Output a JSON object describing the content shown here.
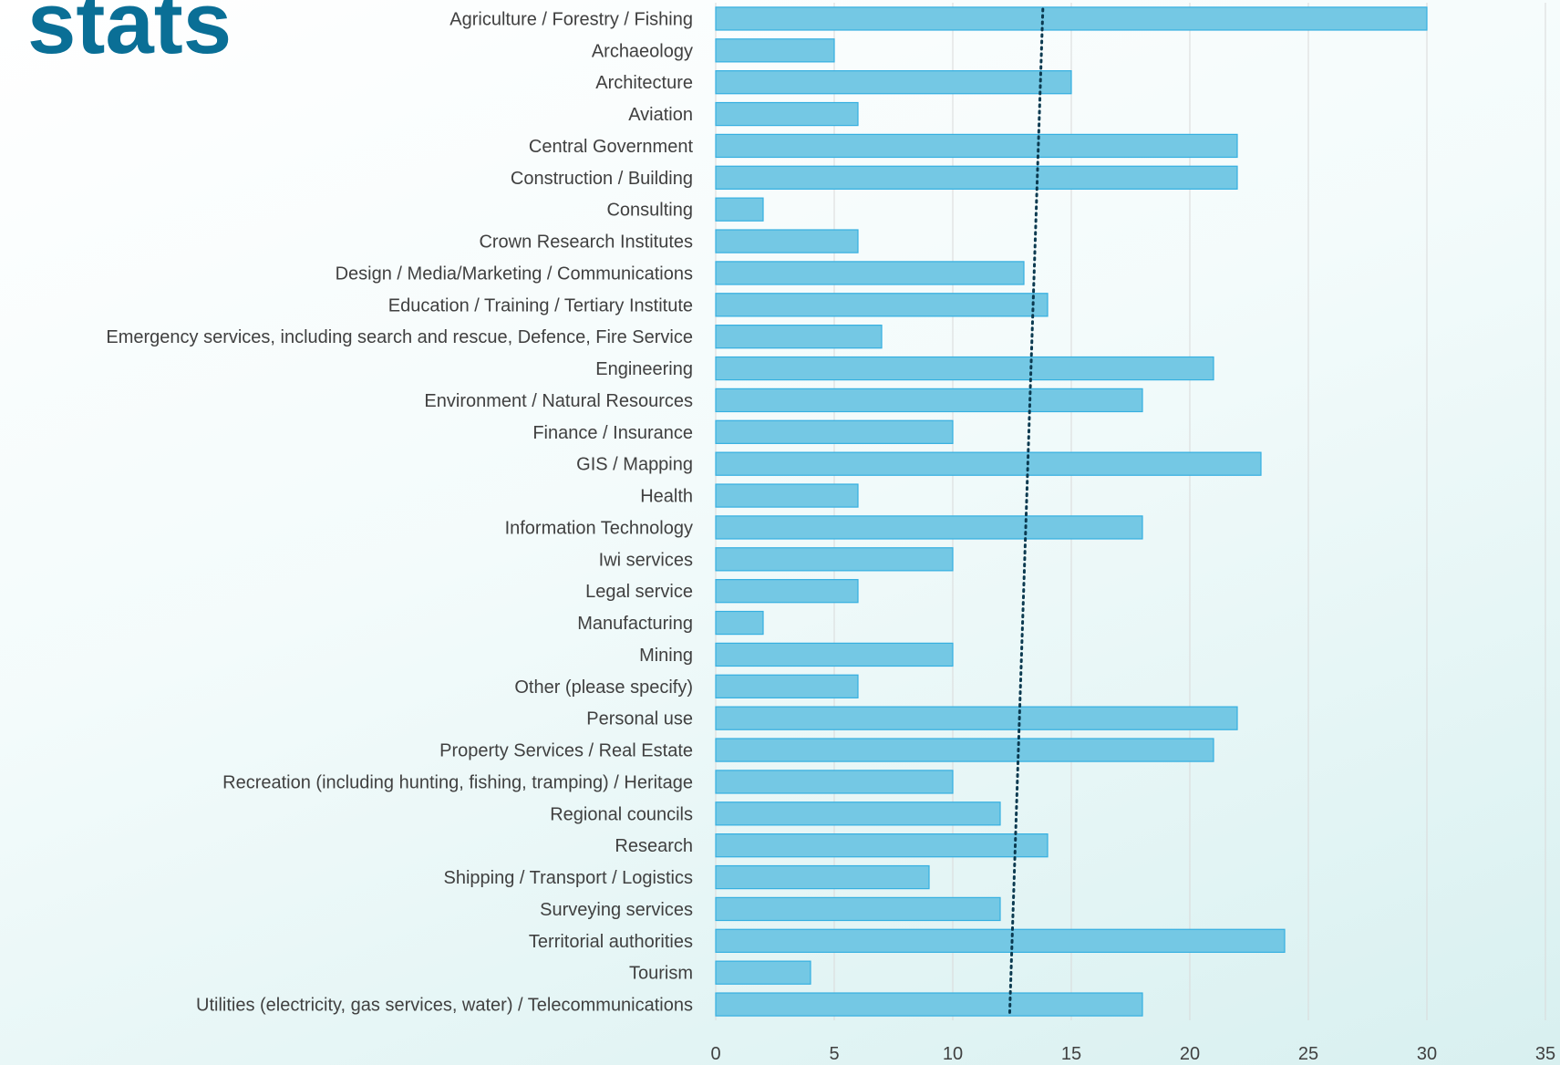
{
  "chart_data": {
    "type": "hbar",
    "title": "stats",
    "categories": [
      "Agriculture / Forestry / Fishing",
      "Archaeology",
      "Architecture",
      "Aviation",
      "Central Government",
      "Construction / Building",
      "Consulting",
      "Crown Research Institutes",
      "Design / Media/Marketing / Communications",
      "Education / Training / Tertiary Institute",
      "Emergency services, including search and rescue, Defence, Fire Service",
      "Engineering",
      "Environment / Natural Resources",
      "Finance / Insurance",
      "GIS / Mapping",
      "Health",
      "Information Technology",
      "Iwi services",
      "Legal service",
      "Manufacturing",
      "Mining",
      "Other (please specify)",
      "Personal use",
      "Property Services / Real Estate",
      "Recreation (including hunting, fishing, tramping) / Heritage",
      "Regional councils",
      "Research",
      "Shipping / Transport / Logistics",
      "Surveying services",
      "Territorial authorities",
      "Tourism",
      "Utilities (electricity, gas services, water) / Telecommunications"
    ],
    "values": [
      30,
      5,
      15,
      6,
      22,
      22,
      2,
      6,
      13,
      14,
      7,
      21,
      18,
      10,
      23,
      6,
      18,
      10,
      6,
      2,
      10,
      6,
      22,
      21,
      10,
      12,
      14,
      9,
      12,
      24,
      4,
      18
    ],
    "color": "#74c8e4",
    "edge_color": "#35afe0",
    "xlim": [
      0,
      35
    ],
    "xticks": [
      0,
      5,
      10,
      15,
      20,
      25,
      30,
      35
    ],
    "grid": true,
    "trendline": {
      "start": 13.8,
      "end": 12.4,
      "color": "#0b3a50"
    }
  }
}
